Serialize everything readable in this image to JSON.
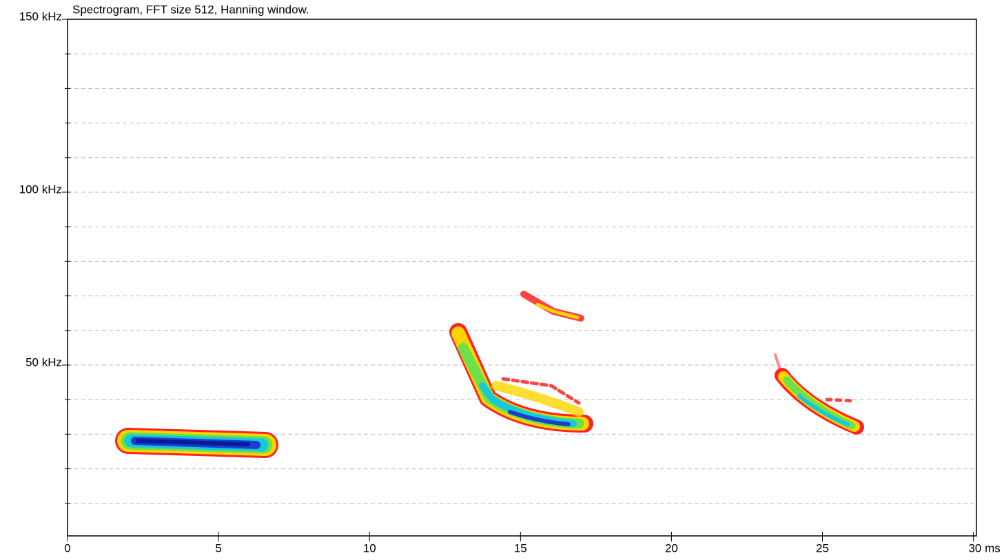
{
  "chart_data": {
    "type": "spectrogram",
    "title": "Spectrogram, FFT size 512, Hanning window.",
    "xlim": [
      0,
      30.1
    ],
    "xticks": [
      0,
      5,
      10,
      15,
      20,
      25,
      {
        "value": 30,
        "label": "30 ms"
      }
    ],
    "ylim": [
      0,
      150
    ],
    "yticks": [
      {
        "value": 50,
        "label": "50 kHz"
      },
      {
        "value": 100,
        "label": "100 kHz"
      },
      {
        "value": 150,
        "label": "150 kHz"
      }
    ],
    "yminorticks": [
      10,
      20,
      30,
      40,
      60,
      70,
      80,
      90,
      110,
      120,
      130,
      140
    ],
    "grid": true
  }
}
